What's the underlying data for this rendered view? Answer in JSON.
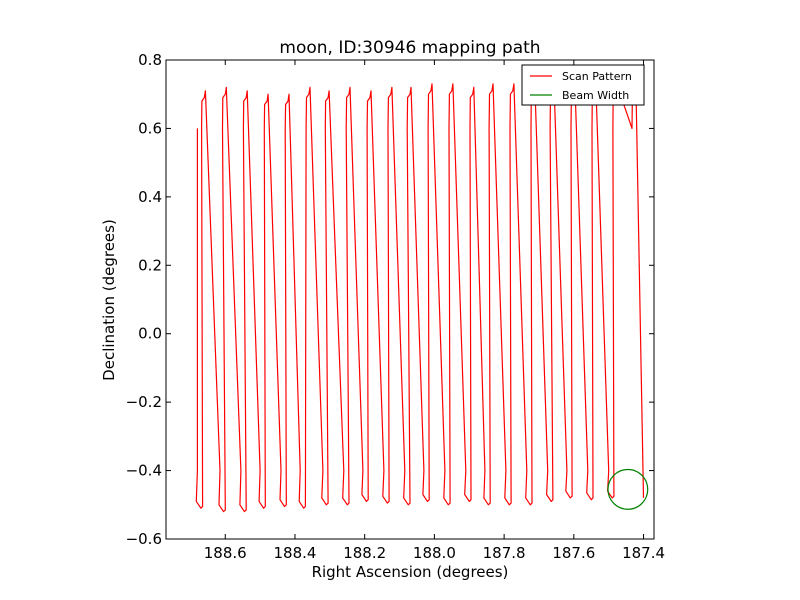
{
  "chart_data": {
    "type": "line",
    "title": "moon, ID:30946 mapping path",
    "xlabel": "Right Ascension (degrees)",
    "ylabel": "Declination (degrees)",
    "xlim": [
      188.77,
      187.37
    ],
    "ylim": [
      -0.6,
      0.8
    ],
    "x_inverted": true,
    "xticks": [
      188.6,
      188.4,
      188.2,
      188.0,
      187.8,
      187.6,
      187.4
    ],
    "xtick_labels": [
      "188.6",
      "188.4",
      "188.2",
      "188.0",
      "187.8",
      "187.6",
      "187.4"
    ],
    "yticks": [
      0.8,
      0.6,
      0.4,
      0.2,
      0.0,
      -0.2,
      -0.4,
      -0.6
    ],
    "ytick_labels": [
      "0.8",
      "0.6",
      "0.4",
      "0.2",
      "0.0",
      "−0.2",
      "−0.4",
      "−0.6"
    ],
    "legend_position": "top-right",
    "series": [
      {
        "name": "Scan Pattern",
        "color": "#ff0000",
        "start": [
          188.68,
          0.6
        ],
        "bottom_ra": [
          188.68,
          188.615,
          188.555,
          188.5,
          188.44,
          188.385,
          188.32,
          188.26,
          188.205,
          188.145,
          188.085,
          188.03,
          187.97,
          187.91,
          187.855,
          187.795,
          187.735,
          187.675,
          187.62,
          187.56,
          187.5
        ],
        "bottom_dec": [
          -0.51,
          -0.52,
          -0.52,
          -0.51,
          -0.505,
          -0.51,
          -0.5,
          -0.5,
          -0.49,
          -0.495,
          -0.5,
          -0.49,
          -0.5,
          -0.49,
          -0.5,
          -0.5,
          -0.5,
          -0.49,
          -0.48,
          -0.485,
          -0.48
        ],
        "top_ra": [
          188.665,
          188.605,
          188.545,
          188.485,
          188.425,
          188.365,
          188.31,
          188.25,
          188.19,
          188.13,
          188.075,
          188.015,
          187.955,
          187.895,
          187.84,
          187.78,
          187.72,
          187.665,
          187.605,
          187.545,
          187.485,
          187.43
        ],
        "top_dec": [
          0.71,
          0.72,
          0.71,
          0.7,
          0.7,
          0.72,
          0.71,
          0.72,
          0.71,
          0.72,
          0.72,
          0.73,
          0.73,
          0.72,
          0.73,
          0.73,
          0.73,
          0.73,
          0.73,
          0.73,
          0.73,
          0.73
        ],
        "end": [
          187.4,
          -0.48
        ]
      },
      {
        "name": "Beam Width",
        "color": "#008000",
        "center": [
          187.445,
          -0.455
        ],
        "radius_deg": 0.057
      }
    ]
  }
}
